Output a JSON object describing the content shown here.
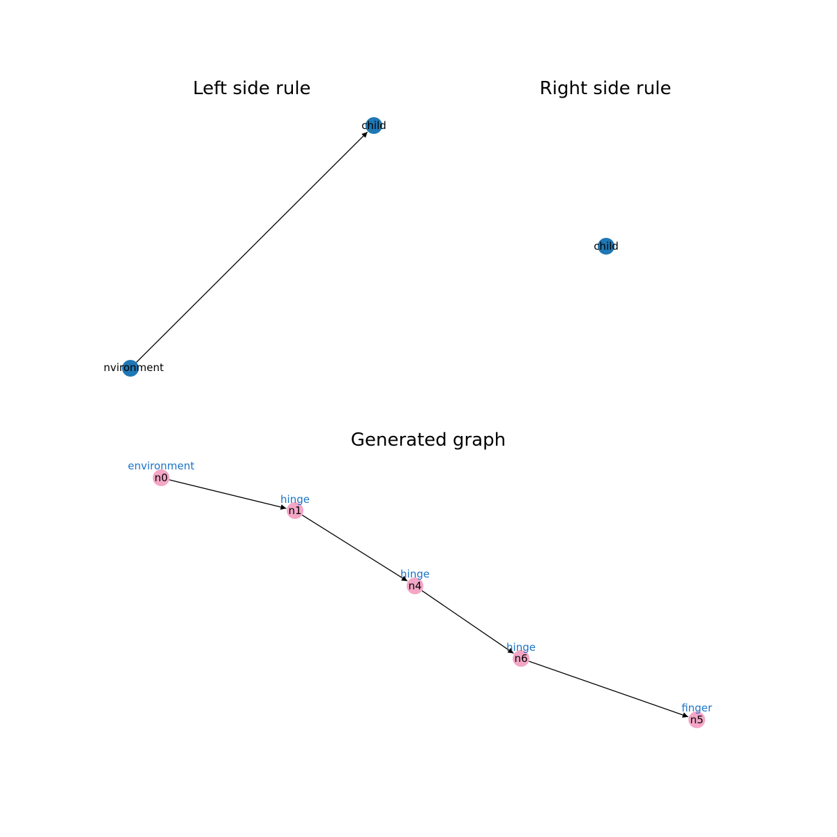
{
  "colors": {
    "rule_node": "#1f77b4",
    "graph_node": "#f4a6c6",
    "edge": "#000000",
    "type_label": "#1a73c8",
    "text": "#000000"
  },
  "left_rule": {
    "title": "Left side rule",
    "nodes": {
      "environment": "environment",
      "child": "child"
    },
    "edges": [
      {
        "from": "environment",
        "to": "child"
      }
    ]
  },
  "right_rule": {
    "title": "Right side rule",
    "nodes": {
      "child": "child"
    }
  },
  "generated": {
    "title": "Generated graph",
    "nodes": {
      "n0": {
        "label": "n0",
        "type": "environment"
      },
      "n1": {
        "label": "n1",
        "type": "hinge"
      },
      "n4": {
        "label": "n4",
        "type": "hinge"
      },
      "n6": {
        "label": "n6",
        "type": "hinge"
      },
      "n5": {
        "label": "n5",
        "type": "finger"
      }
    },
    "edges": [
      {
        "from": "n0",
        "to": "n1"
      },
      {
        "from": "n1",
        "to": "n4"
      },
      {
        "from": "n4",
        "to": "n6"
      },
      {
        "from": "n6",
        "to": "n5"
      }
    ]
  }
}
